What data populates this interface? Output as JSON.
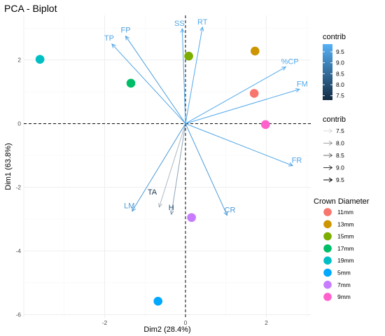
{
  "chart_data": {
    "type": "scatter",
    "title": "PCA - Biplot",
    "xlabel": "Dim2 (28.4%)",
    "ylabel": "Dim1 (63.8%)",
    "xlim": [
      -4.0,
      3.1
    ],
    "ylim": [
      -6.1,
      3.4
    ],
    "x_ticks": [
      -2,
      0,
      2
    ],
    "y_ticks": [
      -6,
      -4,
      -2,
      0,
      2
    ],
    "grid": true,
    "reference_lines": {
      "x": 0,
      "y": 0,
      "style": "dashed"
    },
    "points": [
      {
        "group": "11mm",
        "x": 1.7,
        "y": 0.95
      },
      {
        "group": "13mm",
        "x": 1.72,
        "y": 2.28
      },
      {
        "group": "15mm",
        "x": 0.08,
        "y": 2.12
      },
      {
        "group": "17mm",
        "x": -1.35,
        "y": 1.27
      },
      {
        "group": "19mm",
        "x": -3.6,
        "y": 2.02
      },
      {
        "group": "5mm",
        "x": -0.68,
        "y": -5.58
      },
      {
        "group": "7mm",
        "x": 0.15,
        "y": -2.95
      },
      {
        "group": "9mm",
        "x": 1.98,
        "y": -0.03
      }
    ],
    "variables": [
      {
        "name": "SS",
        "x": -0.08,
        "y": 2.98,
        "contrib": 9.6
      },
      {
        "name": "RT",
        "x": 0.42,
        "y": 3.03,
        "contrib": 9.7
      },
      {
        "name": "FP",
        "x": -1.48,
        "y": 2.75,
        "contrib": 9.5
      },
      {
        "name": "TP",
        "x": -1.82,
        "y": 2.5,
        "contrib": 9.6
      },
      {
        "name": "%CP",
        "x": 2.48,
        "y": 1.78,
        "contrib": 9.7
      },
      {
        "name": "FM",
        "x": 2.82,
        "y": 1.08,
        "contrib": 9.7
      },
      {
        "name": "FR",
        "x": 2.65,
        "y": -1.32,
        "contrib": 9.6
      },
      {
        "name": "CR",
        "x": 1.03,
        "y": -2.88,
        "contrib": 9.4
      },
      {
        "name": "H",
        "x": -0.35,
        "y": -2.85,
        "contrib": 8.0
      },
      {
        "name": "TA",
        "x": -0.65,
        "y": -2.62,
        "contrib": 7.5
      },
      {
        "name": "LM",
        "x": -1.32,
        "y": -2.75,
        "contrib": 9.4
      }
    ],
    "legend_gradient": {
      "title": "contrib",
      "ticks": [
        9.5,
        9.0,
        8.5,
        8.0,
        7.5
      ],
      "range": [
        7.3,
        9.85
      ],
      "low_color": "#132B43",
      "high_color": "#56B1F7"
    },
    "legend_alpha": {
      "title": "contrib",
      "values": [
        7.5,
        8.0,
        8.5,
        9.0,
        9.5
      ]
    },
    "legend_groups": {
      "title": "Crown Diameter",
      "items": [
        {
          "label": "11mm",
          "color": "#F8766D"
        },
        {
          "label": "13mm",
          "color": "#CD9600"
        },
        {
          "label": "15mm",
          "color": "#7CAE00"
        },
        {
          "label": "17mm",
          "color": "#00BE67"
        },
        {
          "label": "19mm",
          "color": "#00BFC4"
        },
        {
          "label": "5mm",
          "color": "#00A9FF"
        },
        {
          "label": "7mm",
          "color": "#C77CFF"
        },
        {
          "label": "9mm",
          "color": "#FF61CC"
        }
      ]
    },
    "arrow_color": "#31A9DF"
  }
}
